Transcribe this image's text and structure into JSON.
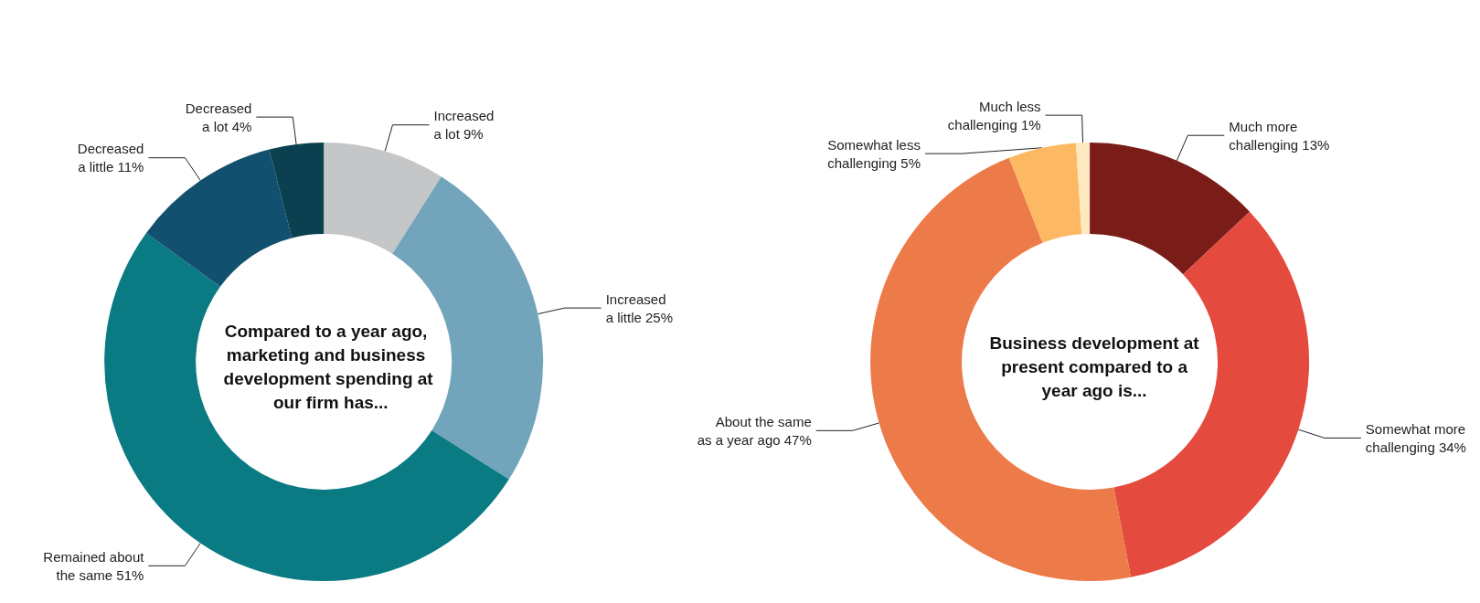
{
  "chart_data": [
    {
      "type": "donut",
      "title": "Compared to a year ago, marketing and business development spending at our firm has...",
      "categories": [
        "Increased\na lot",
        "Increased\na little",
        "Remained about\nthe same",
        "Decreased\na little",
        "Decreased\na lot"
      ],
      "values": [
        9,
        25,
        51,
        11,
        4
      ],
      "value_labels": [
        "9%",
        "25%",
        "51%",
        "11%",
        "4%"
      ],
      "colors": [
        "#c4c6c8",
        "#72a5bb",
        "#0a7b83",
        "#11506f",
        "#0b4050"
      ],
      "legend": false
    },
    {
      "type": "donut",
      "title": "Business development at present compared to a year ago is...",
      "categories": [
        "Much more\nchallenging",
        "Somewhat more\nchallenging",
        "About the same\nas a year ago",
        "Somewhat less\nchallenging",
        "Much less\nchallenging"
      ],
      "values": [
        13,
        34,
        47,
        5,
        1
      ],
      "value_labels": [
        "13%",
        "34%",
        "47%",
        "5%",
        "1%"
      ],
      "colors": [
        "#7a1c17",
        "#e44a3e",
        "#ed7b4a",
        "#fdb863",
        "#fde8c0"
      ],
      "legend": false
    }
  ]
}
